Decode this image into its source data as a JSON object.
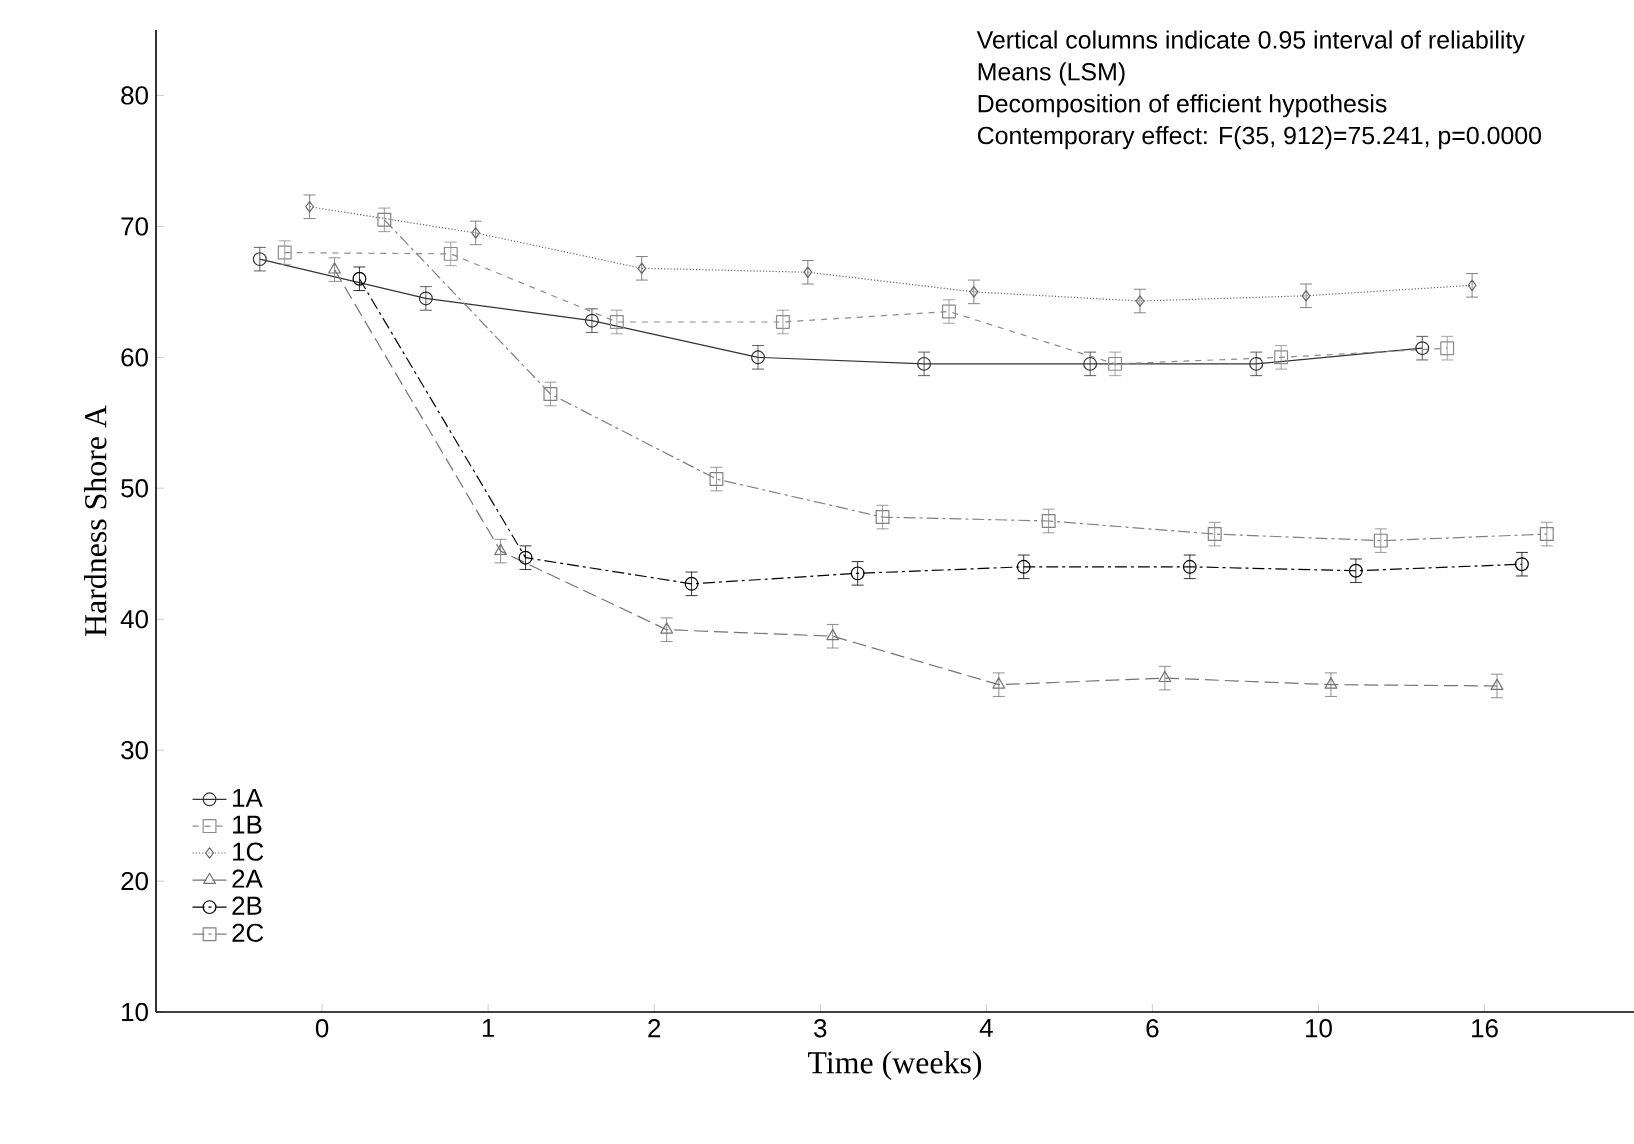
{
  "chart_data": {
    "type": "line",
    "xlabel": "Time (weeks)",
    "ylabel": "Hardness Shore A",
    "annotations": [
      "Vertical columns indicate 0.95 interval of reliability",
      "Means (LSM)",
      "Decomposition of efficient hypothesis",
      "Contemporary effect: F(35, 912)=75.241, p=0.0000"
    ],
    "categories": [
      "0",
      "1",
      "2",
      "3",
      "4",
      "6",
      "10",
      "16"
    ],
    "ylim": [
      10,
      85
    ],
    "yticks": [
      10,
      20,
      30,
      40,
      50,
      60,
      70,
      80
    ],
    "legend": "bottom left",
    "grid": false,
    "series": [
      {
        "name": "1A",
        "color": "#333333",
        "marker": "circle",
        "line_style": "solid",
        "values": [
          67.5,
          64.5,
          62.8,
          60.0,
          59.5,
          59.5,
          59.5,
          60.7
        ],
        "errors": [
          0.9,
          0.9,
          0.9,
          0.9,
          0.9,
          0.9,
          0.9,
          0.9
        ]
      },
      {
        "name": "1B",
        "color": "#8c8c8c",
        "marker": "square",
        "line_style": "dashed",
        "values": [
          68.0,
          67.9,
          62.7,
          62.7,
          63.5,
          59.5,
          60.0,
          60.7
        ],
        "errors": [
          0.9,
          0.9,
          0.9,
          0.9,
          0.9,
          0.9,
          0.9,
          0.9
        ]
      },
      {
        "name": "1C",
        "color": "#666666",
        "marker": "diamond",
        "line_style": "dotted",
        "values": [
          71.5,
          69.5,
          66.8,
          66.5,
          65.0,
          64.3,
          64.7,
          65.5
        ],
        "errors": [
          0.9,
          0.9,
          0.9,
          0.9,
          0.9,
          0.9,
          0.9,
          0.9
        ]
      },
      {
        "name": "2A",
        "color": "#737373",
        "marker": "triangle",
        "line_style": "longdashed",
        "values": [
          66.7,
          45.2,
          39.2,
          38.7,
          35.0,
          35.5,
          35.0,
          34.9
        ],
        "errors": [
          0.9,
          0.9,
          0.9,
          0.9,
          0.9,
          0.9,
          0.9,
          0.9
        ]
      },
      {
        "name": "2B",
        "color": "#000000",
        "marker": "circle",
        "line_style": "dashdot",
        "values": [
          66.0,
          44.7,
          42.7,
          43.5,
          44.0,
          44.0,
          43.7,
          44.2
        ],
        "errors": [
          0.9,
          0.9,
          0.9,
          0.9,
          0.9,
          0.9,
          0.9,
          0.9
        ]
      },
      {
        "name": "2C",
        "color": "#808080",
        "marker": "square",
        "line_style": "dashdot",
        "values": [
          70.5,
          57.2,
          50.7,
          47.8,
          47.5,
          46.5,
          46.0,
          46.5
        ],
        "errors": [
          0.9,
          0.9,
          0.9,
          0.9,
          0.9,
          0.9,
          0.9,
          0.9
        ]
      }
    ]
  }
}
